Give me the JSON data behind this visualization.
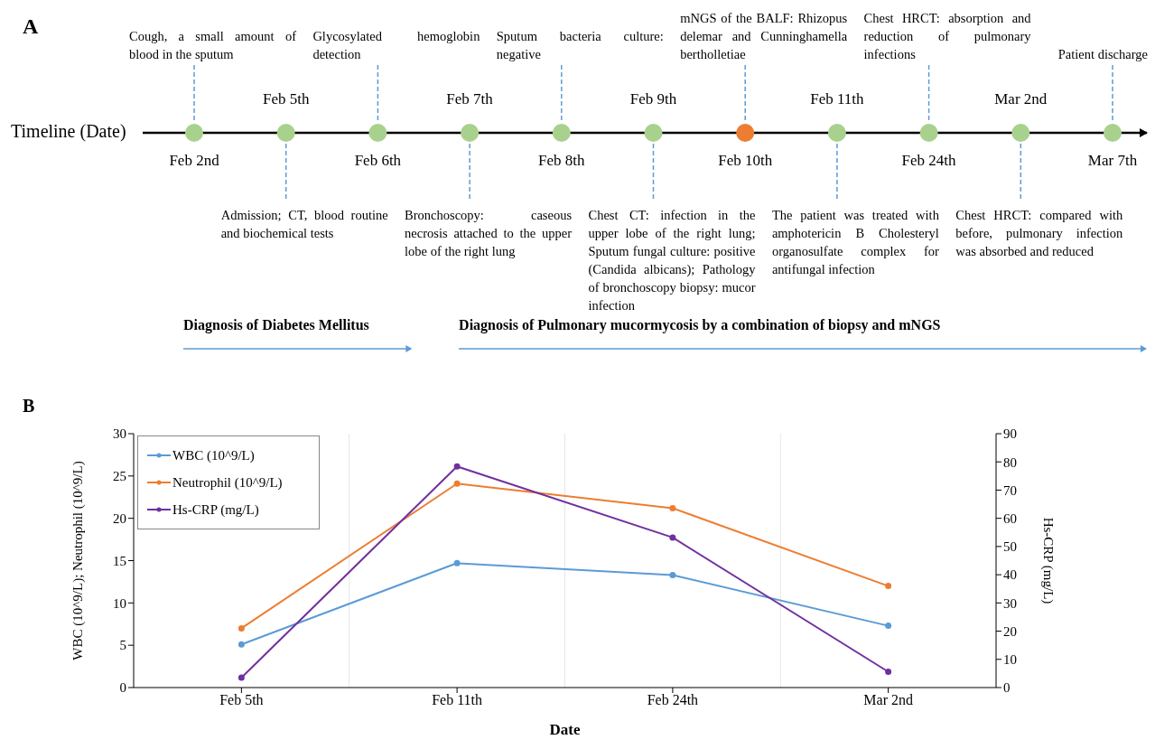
{
  "chart_data": [
    {
      "type": "other",
      "title": "A",
      "ylabel": "Timeline (Date)",
      "categories": [
        "Feb 2nd",
        "Feb 5th",
        "Feb 6th",
        "Feb 7th",
        "Feb 8th",
        "Feb 9th",
        "Feb 10th",
        "Feb 11th",
        "Feb 24th",
        "Mar 2nd",
        "Mar 7th"
      ],
      "colors": [
        "#a9d18e",
        "#a9d18e",
        "#a9d18e",
        "#a9d18e",
        "#a9d18e",
        "#a9d18e",
        "#ed7d31",
        "#a9d18e",
        "#a9d18e",
        "#a9d18e",
        "#a9d18e"
      ],
      "annotations": [
        "Cough, a small amount of blood in the sputum",
        "Admission; CT, blood routine and biochemical tests",
        "Glycosylated hemoglobin detection",
        "Bronchoscopy: caseous necrosis attached to the upper lobe of the right lung",
        "Sputum bacteria culture: negative",
        "Chest CT: infection in the upper lobe of the right lung; Sputum fungal culture: positive (Candida albicans); Pathology of bronchoscopy biopsy: mucor infection",
        "mNGS of the BALF: Rhizopus delemar and Cunninghamella bertholletiae",
        "The patient was treated with amphotericin B Cholesteryl organosulfate complex for antifungal infection",
        "Chest HRCT: absorption and reduction of pulmonary infections",
        "Chest HRCT: compared with before, pulmonary infection was absorbed and reduced",
        "Patient discharge",
        "Diagnosis of Diabetes Mellitus",
        "Diagnosis of Pulmonary mucormycosis by a combination of biopsy and mNGS"
      ]
    },
    {
      "type": "line",
      "title": "B",
      "xlabel": "Date",
      "ylabel": "WBC (10^9/L); Neutrophil (10^9/L)",
      "y2label": "Hs-CRP (mg/L)",
      "categories": [
        "Feb 5th",
        "Feb 11th",
        "Feb 24th",
        "Mar 2nd"
      ],
      "series": [
        {
          "name": "WBC (10^9/L)",
          "color": "#5b9bd5",
          "values": [
            5.1,
            14.7,
            13.3,
            7.3
          ]
        },
        {
          "name": "Neutrophil (10^9/L)",
          "color": "#ed7d31",
          "values": [
            7.0,
            24.1,
            21.2,
            12.0
          ]
        },
        {
          "name": "Hs-CRP (mg/L)",
          "color": "#7030a0",
          "axis": "y2",
          "values": [
            3.5,
            78.4,
            53.2,
            5.6
          ]
        }
      ],
      "ylim": [
        0,
        30
      ],
      "yticks": [
        0,
        5,
        10,
        15,
        20,
        25,
        30
      ],
      "y2lim": [
        0,
        90
      ],
      "y2ticks": [
        0,
        10,
        20,
        30,
        40,
        50,
        60,
        70,
        80,
        90
      ],
      "grid": "x",
      "legend": "top left",
      "marker": "circle"
    }
  ]
}
